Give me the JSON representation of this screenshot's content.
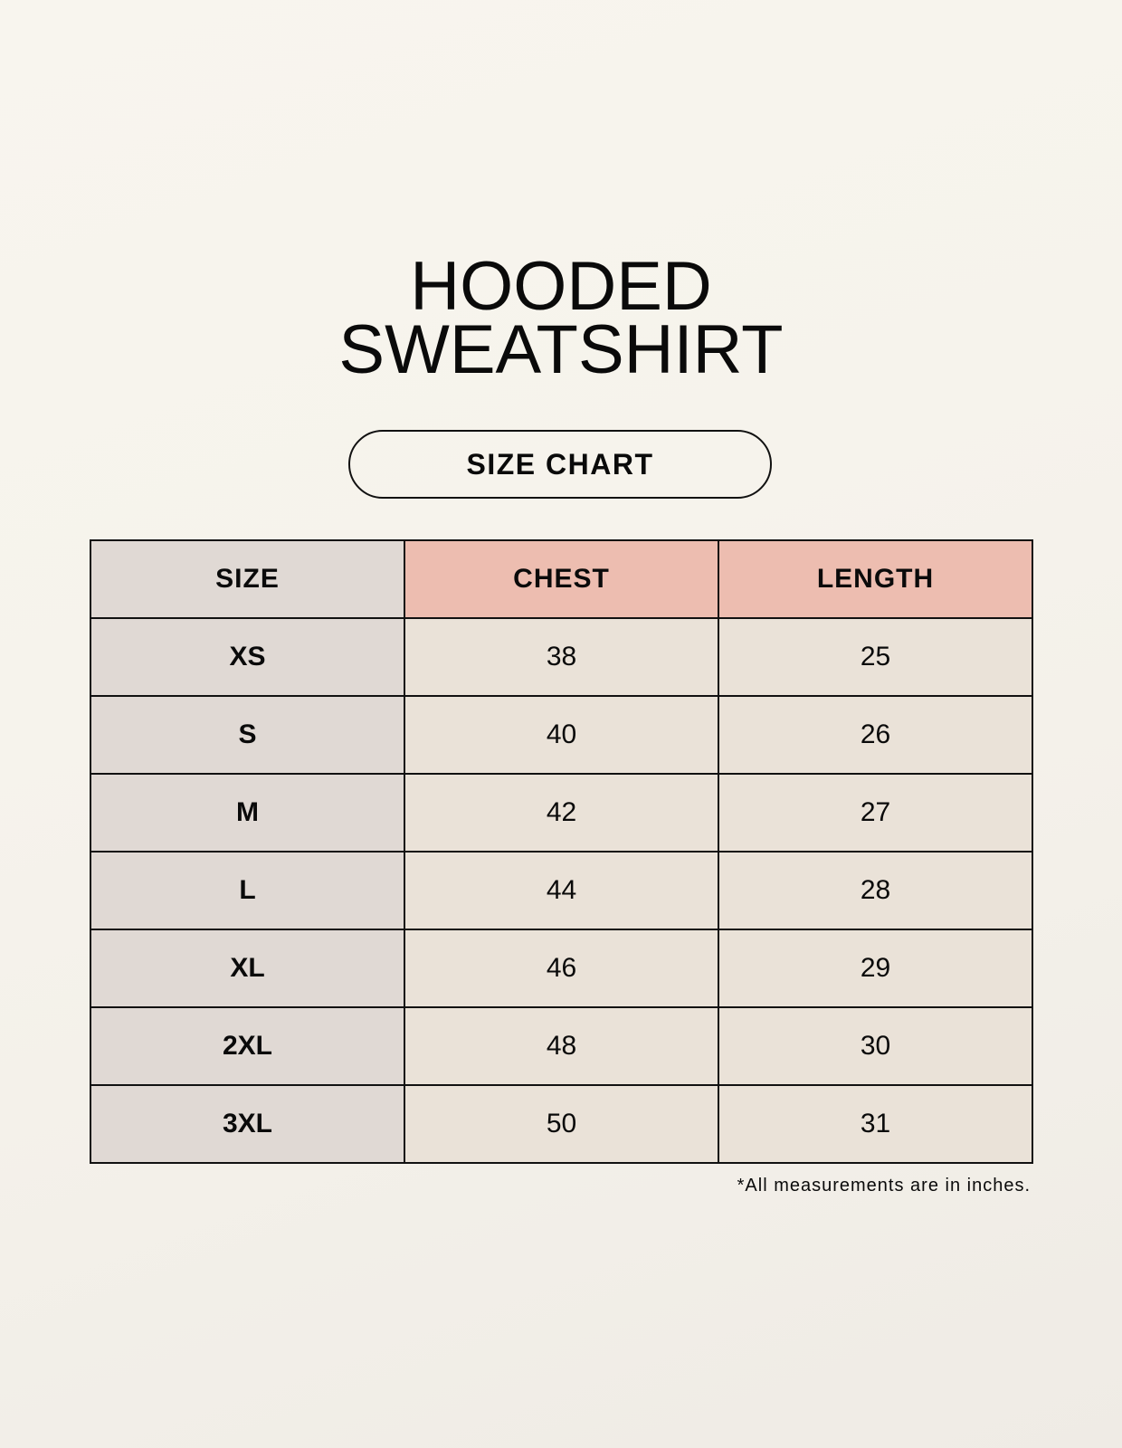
{
  "title": {
    "line1": "HOODED",
    "line2": "SWEATSHIRT"
  },
  "subtitle": "SIZE CHART",
  "colors": {
    "size_column": "#e0d9d4",
    "header_accent": "#edbdb0",
    "value_cells": "#eae2d8"
  },
  "table": {
    "headers": [
      "SIZE",
      "CHEST",
      "LENGTH"
    ],
    "rows": [
      {
        "size": "XS",
        "chest": "38",
        "length": "25"
      },
      {
        "size": "S",
        "chest": "40",
        "length": "26"
      },
      {
        "size": "M",
        "chest": "42",
        "length": "27"
      },
      {
        "size": "L",
        "chest": "44",
        "length": "28"
      },
      {
        "size": "XL",
        "chest": "46",
        "length": "29"
      },
      {
        "size": "2XL",
        "chest": "48",
        "length": "30"
      },
      {
        "size": "3XL",
        "chest": "50",
        "length": "31"
      }
    ]
  },
  "footnote": "*All measurements are in inches."
}
